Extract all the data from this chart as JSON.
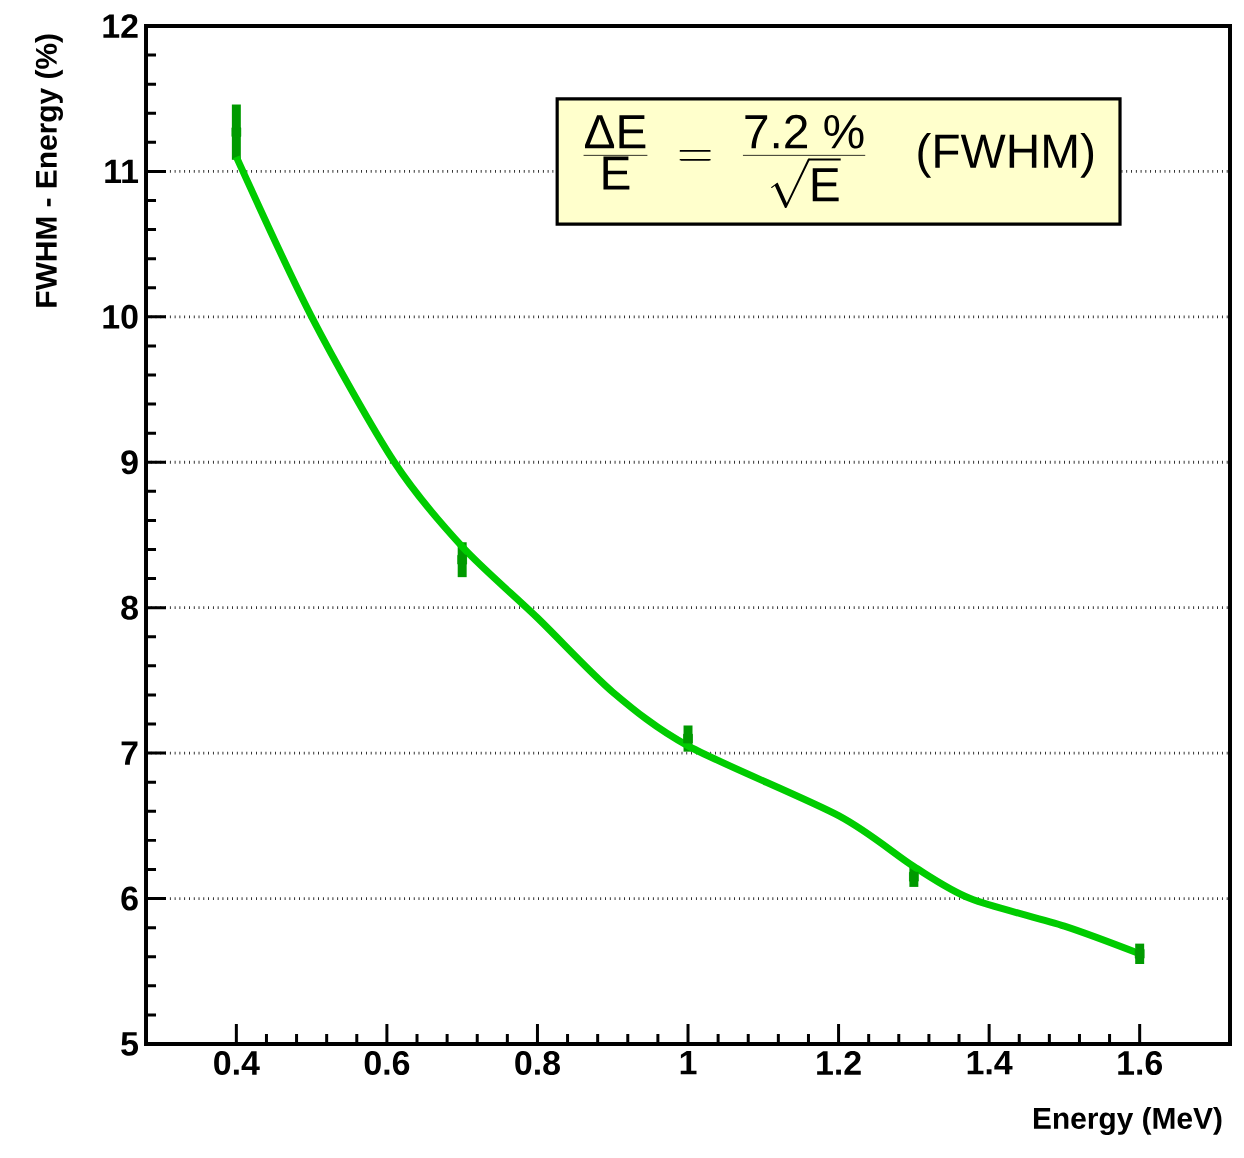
{
  "chart_data": {
    "type": "scatter",
    "xlabel": "Energy (MeV)",
    "ylabel": "FWHM - Energy (%)",
    "annotations": [
      "\\frac{\\mbox{ΔE}}{\\mbox{E}}\\;=\\;\\frac{\\mbox{7.2 \\%}}{\\sqrt{\\mbox{E}}}\\quad\\mbox{(FWHM)}"
    ],
    "series": [
      {
        "color": "#009a00",
        "marker": "square",
        "x": [
          0.4,
          0.7,
          1.0,
          1.3,
          1.6
        ],
        "values": [
          11.27,
          8.33,
          7.1,
          6.15,
          5.62
        ],
        "errors": [
          0.19,
          0.12,
          0.09,
          0.07,
          0.07
        ]
      },
      {
        "type": "line",
        "color": "#00cc00",
        "x": [
          0.4,
          0.5,
          0.61,
          0.7,
          0.8,
          0.9,
          1.0,
          1.2,
          1.3,
          1.375,
          1.5,
          1.6
        ],
        "values": [
          11.1,
          10.0,
          9.0,
          8.42,
          7.93,
          7.42,
          7.05,
          6.57,
          6.22,
          6.0,
          5.81,
          5.62
        ]
      }
    ],
    "xlim": [
      0.28,
      1.72
    ],
    "ylim": [
      5,
      12
    ],
    "xticks": [
      0.4,
      0.6,
      0.8,
      1,
      1.2,
      1.4,
      1.6
    ],
    "yticks": [
      5,
      6,
      7,
      8,
      9,
      10,
      11,
      12
    ],
    "grid": "y"
  }
}
